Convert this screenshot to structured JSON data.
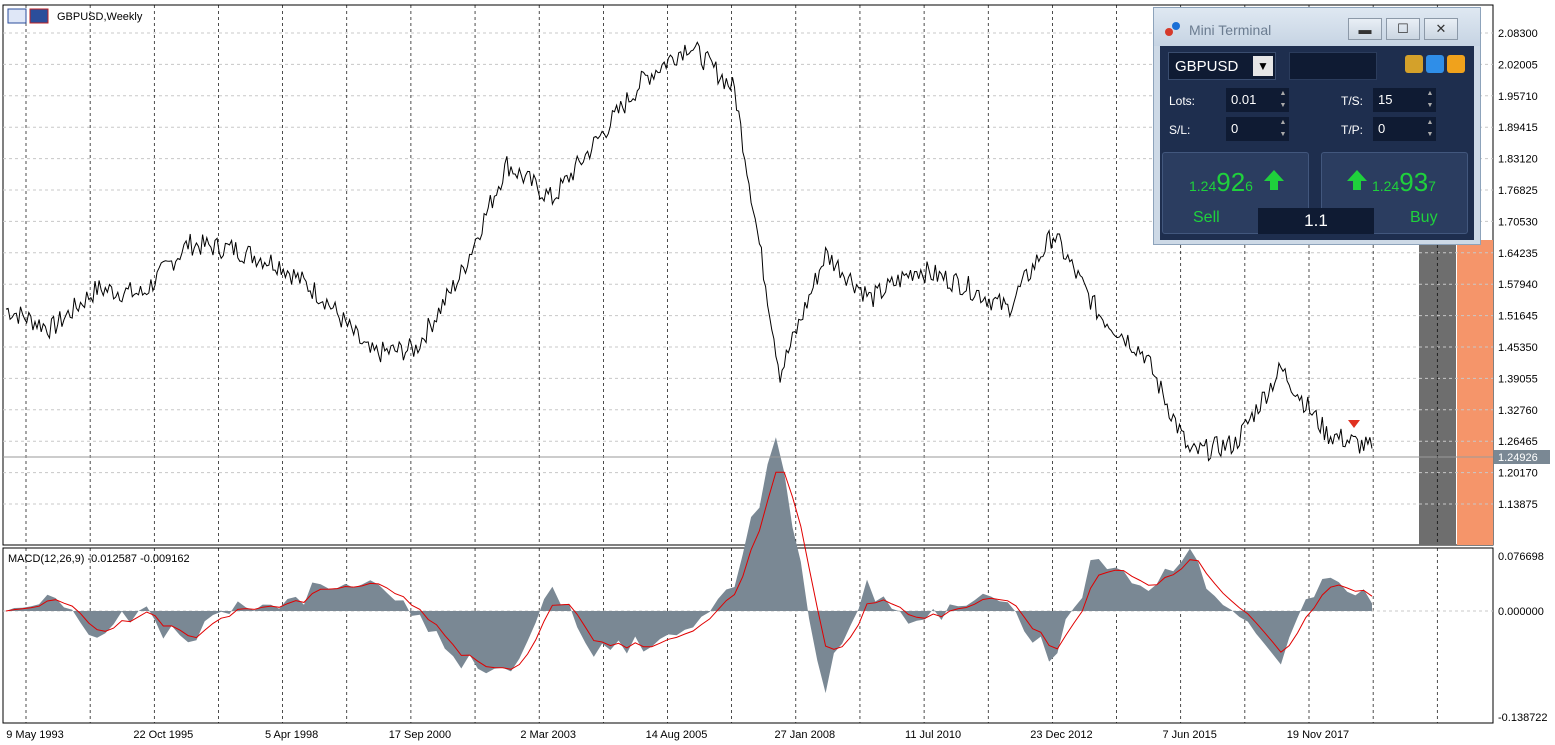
{
  "chart": {
    "title": "GBPUSD,Weekly",
    "symbol": "GBPUSD",
    "timeframe": "Weekly",
    "current_price_label": "1.24926",
    "price_axis": [
      "2.08300",
      "2.02005",
      "1.95710",
      "1.89415",
      "1.83120",
      "1.76825",
      "1.70530",
      "1.64235",
      "1.57940",
      "1.51645",
      "1.45350",
      "1.39055",
      "1.32760",
      "1.26465",
      "1.20170",
      "1.13875"
    ],
    "time_axis": [
      "9 May 1993",
      "22 Oct 1995",
      "5 Apr 1998",
      "17 Sep 2000",
      "2 Mar 2003",
      "14 Aug 2005",
      "27 Jan 2008",
      "11 Jul 2010",
      "23 Dec 2012",
      "7 Jun 2015",
      "19 Nov 2017"
    ],
    "colors": {
      "line": "#000000",
      "grid": "#c0c0c0",
      "vline": "#000000",
      "shade_gray": "#6e6e6e",
      "shade_orange": "#f5956a",
      "current_price_bg": "#7a8894"
    }
  },
  "macd": {
    "label": "MACD(12,26,9) -0.012587 -0.009162",
    "axis": [
      "0.076698",
      "0.000000",
      "-0.138722"
    ],
    "colors": {
      "histogram": "#7a8894",
      "signal": "#e00000"
    }
  },
  "chart_data": {
    "type": "line",
    "title": "GBPUSD,Weekly",
    "xlabel": "",
    "ylabel": "",
    "ylim": [
      1.13875,
      2.083
    ],
    "x": [
      "1993",
      "1994",
      "1995",
      "1996",
      "1997",
      "1998",
      "1999",
      "2000",
      "2001",
      "2002",
      "2003",
      "2004",
      "2005",
      "2006",
      "2007",
      "2007.9",
      "2008.3",
      "2008.9",
      "2009.5",
      "2010",
      "2011",
      "2012",
      "2013",
      "2014",
      "2015",
      "2016",
      "2016.5",
      "2017",
      "2018",
      "2018.6",
      "2019"
    ],
    "series": [
      {
        "name": "GBPUSD",
        "values": [
          1.53,
          1.49,
          1.57,
          1.56,
          1.66,
          1.65,
          1.62,
          1.55,
          1.44,
          1.45,
          1.6,
          1.82,
          1.75,
          1.87,
          1.99,
          2.06,
          1.97,
          1.4,
          1.64,
          1.55,
          1.61,
          1.58,
          1.53,
          1.68,
          1.52,
          1.44,
          1.24,
          1.26,
          1.41,
          1.28,
          1.25
        ]
      }
    ],
    "macd": {
      "ylim": [
        -0.138722,
        0.076698
      ],
      "main": -0.012587,
      "signal": -0.009162
    }
  },
  "mini_terminal": {
    "title": "Mini Terminal",
    "symbol": "GBPUSD",
    "lots_label": "Lots:",
    "lots_value": "0.01",
    "sl_label": "S/L:",
    "sl_value": "0",
    "ts_label": "T/S:",
    "ts_value": "15",
    "tp_label": "T/P:",
    "tp_value": "0",
    "sell": {
      "prefix": "1.24",
      "big": "92",
      "suffix": "6",
      "label": "Sell"
    },
    "buy": {
      "prefix": "1.24",
      "big": "93",
      "suffix": "7",
      "label": "Buy"
    },
    "spread": "1.1",
    "colors": {
      "price": "#1fd13c",
      "panel": "#1e2e4e"
    }
  }
}
